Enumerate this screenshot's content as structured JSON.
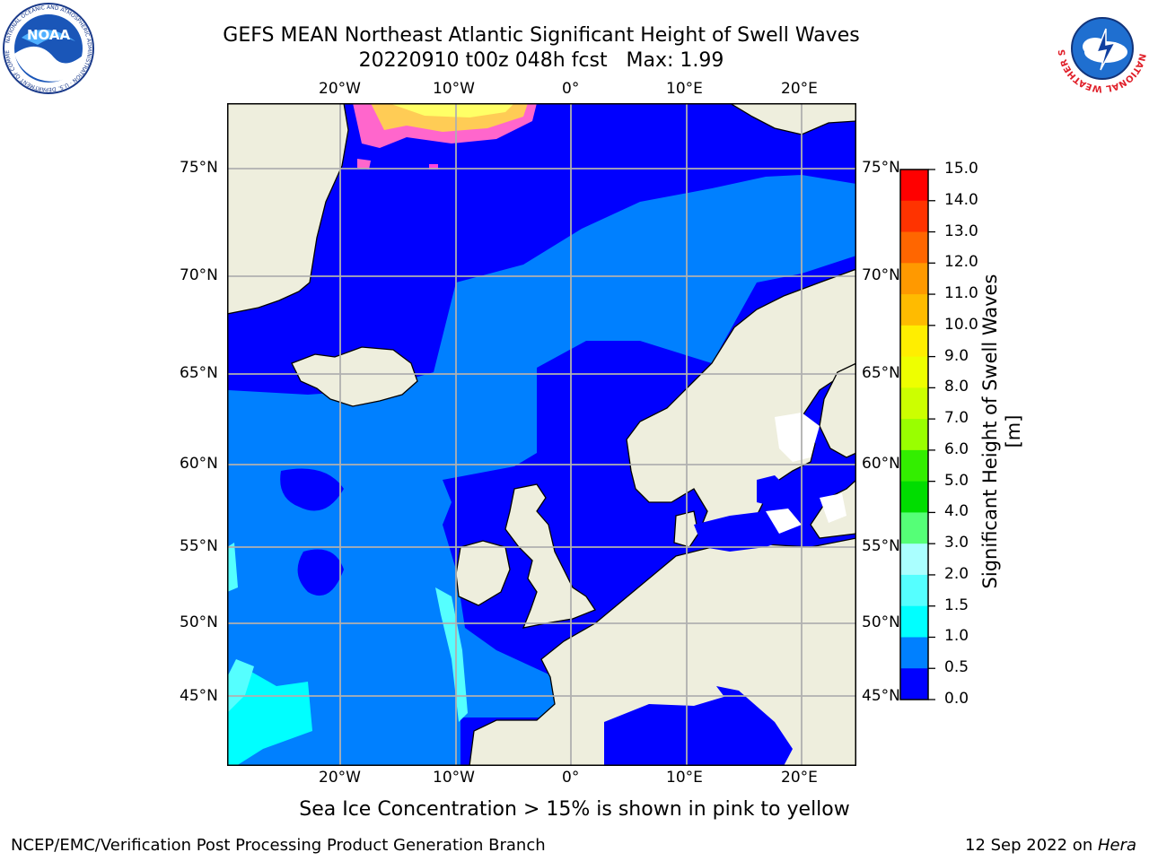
{
  "header": {
    "title_line1": "GEFS MEAN Northeast Atlantic Significant Height of Swell Waves",
    "title_line2": "20220910 t00z 048h fcst   Max: 1.99"
  },
  "logos": {
    "noaa_text": "NOAA",
    "noaa_ring": "NATIONAL OCEANIC AND ATMOSPHERIC ADMINISTRATION · U.S. DEPARTMENT OF COMMERCE",
    "nws_ring": "NATIONAL WEATHER SERVICE"
  },
  "map": {
    "lon_labels": [
      "20°W",
      "10°W",
      "0°",
      "10°E",
      "20°E"
    ],
    "lat_labels": [
      "75°N",
      "70°N",
      "65°N",
      "60°N",
      "55°N",
      "50°N",
      "45°N"
    ],
    "colors": {
      "land": "#eeeedd",
      "ocean_low": "#0000ff",
      "ocean_mid": "#0080ff",
      "ocean_cyan": "#00ffff",
      "grid": "#b0b0b0"
    }
  },
  "colorbar": {
    "label": "Significant Height of Swell Waves [m]",
    "ticks": [
      "15.0",
      "14.0",
      "13.0",
      "12.0",
      "11.0",
      "10.0",
      "9.0",
      "8.0",
      "7.0",
      "6.0",
      "5.0",
      "4.0",
      "3.0",
      "2.0",
      "1.5",
      "1.0",
      "0.5",
      "0.0"
    ],
    "colors": [
      "#ff0000",
      "#ff3300",
      "#ff6600",
      "#ff9900",
      "#ffbb00",
      "#ffee00",
      "#eeff00",
      "#ccff00",
      "#99ff00",
      "#33ee00",
      "#00dd00",
      "#55ff77",
      "#aaffff",
      "#55ffff",
      "#00ffff",
      "#0080ff",
      "#0000ff"
    ]
  },
  "caption": "Sea Ice Concentration > 15% is shown in pink to yellow",
  "footer": {
    "left": "NCEP/EMC/Verification Post Processing Product Generation Branch",
    "right_date": "12 Sep 2022 on ",
    "right_machine": "Hera"
  }
}
